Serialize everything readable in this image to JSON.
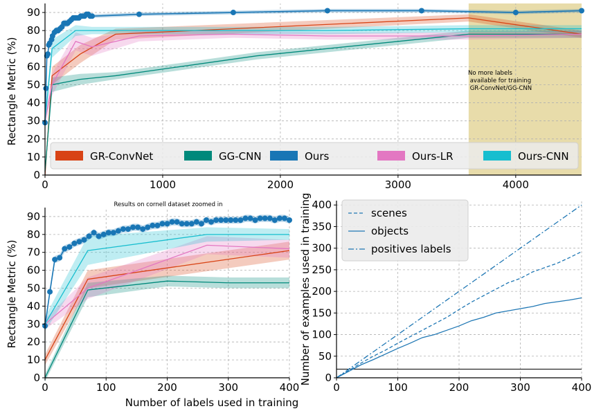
{
  "colors": {
    "GR-ConvNet": "#d84315",
    "GG-CNN": "#00897b",
    "Ours": "#1976b5",
    "Ours-LR": "#e377c2",
    "Ours-CNN": "#17becf",
    "unavailable_region": "#e8dcaa",
    "counts": "#1f77b4"
  },
  "chart_data": [
    {
      "type": "line",
      "panel": "top",
      "xlabel": "",
      "ylabel": "Rectangle Metric (%)",
      "xlim": [
        0,
        4560
      ],
      "ylim": [
        0,
        95
      ],
      "xticks": [
        0,
        1000,
        2000,
        3000,
        4000
      ],
      "yticks": [
        0,
        10,
        20,
        30,
        40,
        50,
        60,
        70,
        80,
        90
      ],
      "grid": true,
      "legend": {
        "position": "bottom",
        "entries": [
          "GR-ConvNet",
          "GG-CNN",
          "Ours",
          "Ours-LR",
          "Ours-CNN"
        ]
      },
      "annotation": {
        "text_lines": [
          "No more labels",
          " available for training",
          " GR-ConvNet/GG-CNN"
        ],
        "region_x": [
          3600,
          4560
        ]
      },
      "series": [
        {
          "name": "GR-ConvNet",
          "x": [
            0,
            60,
            300,
            600,
            3600,
            4560
          ],
          "y": [
            0,
            55,
            67,
            78,
            87,
            78
          ],
          "band": [
            3,
            5,
            5,
            3,
            2,
            2
          ]
        },
        {
          "name": "GG-CNN",
          "x": [
            0,
            60,
            300,
            600,
            1800,
            3600,
            4560
          ],
          "y": [
            2,
            50,
            53,
            55,
            66,
            78,
            78
          ],
          "band": [
            2,
            4,
            3,
            2,
            2,
            2,
            2
          ]
        },
        {
          "name": "Ours",
          "x": [
            0,
            8,
            16,
            24,
            32,
            40,
            56,
            64,
            80,
            96,
            112,
            128,
            144,
            160,
            176,
            192,
            208,
            224,
            240,
            256,
            272,
            288,
            304,
            320,
            336,
            352,
            368,
            384,
            400,
            800,
            1600,
            2400,
            3200,
            4000,
            4560
          ],
          "y": [
            29,
            48,
            66,
            67,
            72,
            73,
            75,
            77,
            79,
            80,
            80,
            81,
            82,
            84,
            84,
            84,
            85,
            86,
            87,
            87,
            87,
            87,
            88,
            88,
            88,
            89,
            89,
            88,
            88,
            89,
            90,
            91,
            91,
            90,
            91
          ],
          "band": [
            1,
            2,
            2,
            2,
            2,
            2,
            2,
            2,
            2,
            2,
            2,
            2,
            2,
            2,
            2,
            2,
            2,
            1,
            1,
            1,
            1,
            1,
            1,
            1,
            1,
            1,
            1,
            1,
            1,
            1,
            1,
            1,
            1,
            1,
            1
          ]
        },
        {
          "name": "Ours-LR",
          "x": [
            0,
            60,
            260,
            400,
            800,
            1600,
            2400,
            3600,
            4560
          ],
          "y": [
            30,
            50,
            74,
            71,
            77,
            78,
            77,
            77,
            78
          ],
          "band": [
            3,
            6,
            5,
            5,
            3,
            2,
            2,
            2,
            2
          ]
        },
        {
          "name": "Ours-CNN",
          "x": [
            0,
            60,
            260,
            400,
            800,
            1600,
            2400,
            3600,
            4560
          ],
          "y": [
            30,
            70,
            80,
            80,
            80,
            80,
            80,
            81,
            81
          ],
          "band": [
            4,
            5,
            3,
            2,
            2,
            2,
            2,
            2,
            2
          ]
        }
      ]
    },
    {
      "type": "line",
      "panel": "bottom-left",
      "title": "Results on cornell dataset zoomed in",
      "xlabel": "Number of labels used in training",
      "ylabel": "Rectangle Metric (%)",
      "xlim": [
        0,
        400
      ],
      "ylim": [
        0,
        95
      ],
      "xticks": [
        0,
        100,
        200,
        300,
        400
      ],
      "yticks": [
        0,
        10,
        20,
        30,
        40,
        50,
        60,
        70,
        80,
        90
      ],
      "grid": true,
      "series": [
        {
          "name": "GR-ConvNet",
          "x": [
            0,
            70,
            400
          ],
          "y": [
            10,
            55,
            71
          ],
          "band": [
            3,
            5,
            5
          ]
        },
        {
          "name": "GG-CNN",
          "x": [
            0,
            70,
            200,
            300,
            400
          ],
          "y": [
            0,
            49,
            54,
            53,
            53
          ],
          "band": [
            2,
            4,
            3,
            3,
            3
          ]
        },
        {
          "name": "Ours",
          "x": [
            0,
            8,
            16,
            24,
            32,
            40,
            48,
            56,
            64,
            72,
            80,
            88,
            96,
            104,
            112,
            120,
            128,
            136,
            144,
            152,
            160,
            168,
            176,
            184,
            192,
            200,
            208,
            216,
            224,
            232,
            240,
            248,
            256,
            264,
            272,
            280,
            288,
            296,
            304,
            312,
            320,
            328,
            336,
            344,
            352,
            360,
            368,
            376,
            384,
            392,
            400
          ],
          "y": [
            29,
            48,
            66,
            67,
            72,
            73,
            75,
            76,
            77,
            79,
            81,
            79,
            80,
            81,
            81,
            82,
            83,
            83,
            84,
            84,
            83,
            84,
            85,
            85,
            86,
            86,
            87,
            87,
            86,
            86,
            86,
            87,
            86,
            88,
            87,
            88,
            88,
            88,
            88,
            88,
            88,
            89,
            89,
            88,
            89,
            89,
            89,
            88,
            89,
            89,
            88
          ],
          "band": [
            1,
            2,
            2,
            2,
            2,
            2,
            2,
            2,
            2,
            2,
            2,
            2,
            2,
            2,
            2,
            2,
            2,
            2,
            2,
            2,
            2,
            2,
            2,
            2,
            2,
            2,
            2,
            2,
            2,
            2,
            2,
            2,
            2,
            2,
            2,
            2,
            2,
            2,
            2,
            2,
            2,
            2,
            2,
            2,
            2,
            2,
            2,
            2,
            2,
            2,
            2
          ]
        },
        {
          "name": "Ours-LR",
          "x": [
            0,
            70,
            265,
            400
          ],
          "y": [
            30,
            50,
            74,
            72
          ],
          "band": [
            3,
            6,
            5,
            5
          ]
        },
        {
          "name": "Ours-CNN",
          "x": [
            0,
            70,
            265,
            400
          ],
          "y": [
            30,
            71,
            80,
            80
          ],
          "band": [
            4,
            8,
            4,
            3
          ]
        }
      ]
    },
    {
      "type": "line",
      "panel": "bottom-right",
      "xlabel": "",
      "ylabel": "Number of examples used in training",
      "xlim": [
        0,
        400
      ],
      "ylim": [
        0,
        410
      ],
      "xticks": [
        0,
        100,
        200,
        300,
        400
      ],
      "yticks": [
        0,
        50,
        100,
        150,
        200,
        250,
        300,
        350,
        400
      ],
      "grid": true,
      "legend": {
        "position": "top-left",
        "entries": [
          "scenes",
          "objects",
          "positives labels"
        ]
      },
      "hline": 20,
      "series": [
        {
          "name": "scenes",
          "style": "dashed",
          "x": [
            0,
            20,
            40,
            60,
            80,
            100,
            120,
            140,
            160,
            180,
            200,
            220,
            240,
            260,
            280,
            300,
            320,
            340,
            360,
            380,
            400
          ],
          "y": [
            0,
            17,
            34,
            50,
            64,
            80,
            95,
            110,
            125,
            140,
            158,
            175,
            190,
            205,
            220,
            230,
            245,
            255,
            265,
            278,
            292
          ]
        },
        {
          "name": "objects",
          "style": "solid",
          "x": [
            0,
            20,
            40,
            60,
            80,
            100,
            120,
            140,
            160,
            180,
            200,
            220,
            240,
            260,
            280,
            300,
            320,
            340,
            360,
            380,
            400
          ],
          "y": [
            0,
            15,
            30,
            42,
            55,
            68,
            80,
            93,
            100,
            110,
            120,
            132,
            140,
            150,
            155,
            160,
            165,
            172,
            176,
            180,
            185
          ]
        },
        {
          "name": "positives labels",
          "style": "dashdot",
          "x": [
            0,
            400
          ],
          "y": [
            0,
            400
          ]
        }
      ]
    }
  ]
}
